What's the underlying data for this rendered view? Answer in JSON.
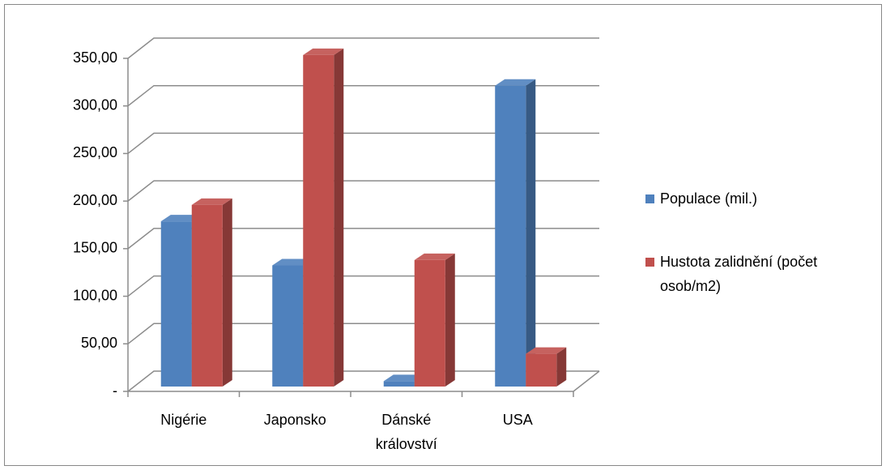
{
  "chart_data": {
    "type": "bar3d",
    "categories": [
      "Nigérie",
      "Japonsko",
      "Dánské království",
      "USA"
    ],
    "series": [
      {
        "name": "Populace (mil.)",
        "color": "#4f81bd",
        "values": [
          173.6,
          127.3,
          5.6,
          316.2
        ]
      },
      {
        "name": "Hustota zalidnění (počet osob/m2)",
        "color": "#c0504d",
        "values": [
          190.9,
          348.4,
          132.9,
          34.4
        ]
      }
    ],
    "ylim": [
      0,
      350
    ],
    "yticks": [
      {
        "value": 0,
        "label": "-"
      },
      {
        "value": 50,
        "label": "50,00"
      },
      {
        "value": 100,
        "label": "100,00"
      },
      {
        "value": 150,
        "label": "150,00"
      },
      {
        "value": 200,
        "label": "200,00"
      },
      {
        "value": 250,
        "label": "250,00"
      },
      {
        "value": 300,
        "label": "300,00"
      },
      {
        "value": 350,
        "label": "350,00"
      }
    ],
    "grid": true,
    "legend": "right"
  }
}
